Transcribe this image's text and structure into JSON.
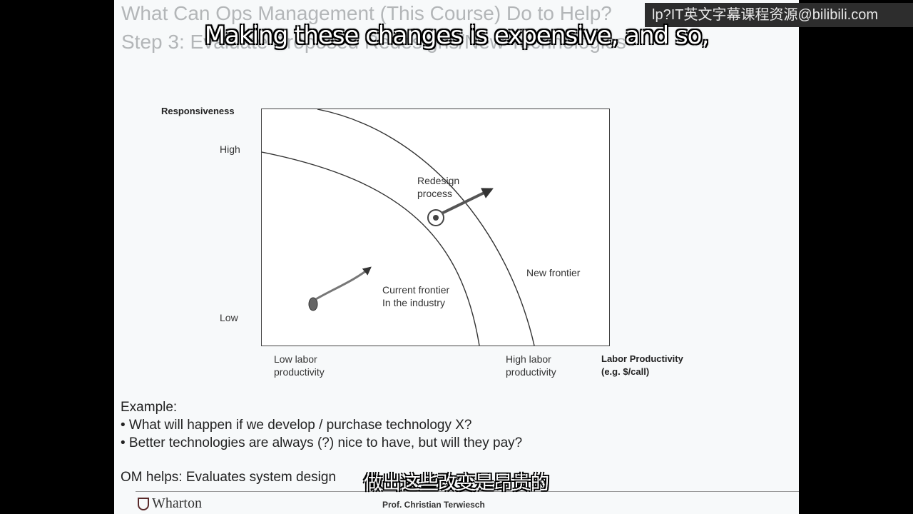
{
  "slide": {
    "title_line1": "What Can Ops Management (This Course) Do to Help?",
    "title_line2": "Step 3: Evaluate Proposed Redesigns/New Technologies"
  },
  "chart_data": {
    "type": "line",
    "ylabel": "Responsiveness",
    "xlabel": "Labor Productivity",
    "xlabel_sub": "(e.g. $/call)",
    "y_ticks": [
      "High",
      "Low"
    ],
    "x_ticks": [
      {
        "line1": "Low labor",
        "line2": "productivity"
      },
      {
        "line1": "High labor",
        "line2": "productivity"
      }
    ],
    "series": [
      {
        "name": "Current frontier\nIn the industry"
      },
      {
        "name": "New frontier"
      }
    ],
    "annotations": {
      "redesign_line1": "Redesign",
      "redesign_line2": "process",
      "current_line1": "Current frontier",
      "current_line2": "In the industry",
      "new_frontier": "New frontier"
    },
    "grid": false,
    "colors": {
      "curve": "#333333",
      "arrow": "#555555"
    }
  },
  "example": {
    "heading": "Example:",
    "bullets": [
      "• What will happen if we develop / purchase technology X?",
      "• Better technologies are always (?) nice to have, but will they pay?"
    ]
  },
  "om_helps": "OM helps: Evaluates system design",
  "footer": {
    "logo": "Wharton",
    "presenter": "Prof. Christian Terwiesch"
  },
  "watermark": "lp?IT英文字幕课程资源@bilibili.com",
  "subtitles": {
    "english": "Making these changes is expensive, and so,",
    "chinese": "做出这些改变是昂贵的"
  }
}
